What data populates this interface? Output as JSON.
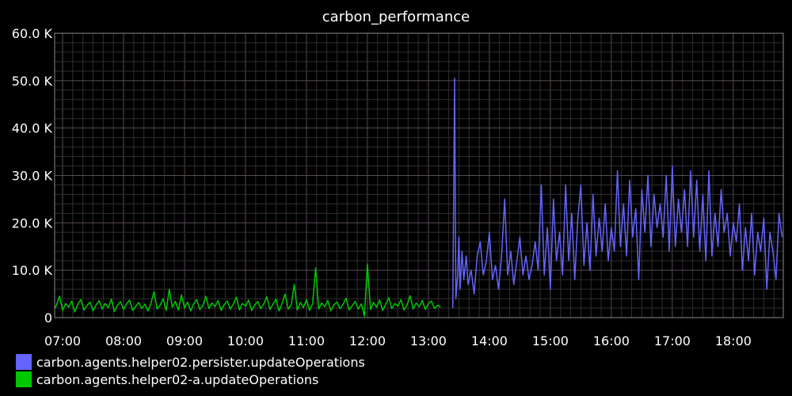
{
  "chart_data": {
    "type": "line",
    "title": "carbon_performance",
    "xlabel": "",
    "ylabel": "",
    "grid": true,
    "legend_placement": "bottom-left",
    "x_domain_hours": [
      6.87,
      18.82
    ],
    "ylim": [
      0,
      60000
    ],
    "y_ticks": [
      {
        "value": 0,
        "label": "0"
      },
      {
        "value": 10000,
        "label": "10.0 K"
      },
      {
        "value": 20000,
        "label": "20.0 K"
      },
      {
        "value": 30000,
        "label": "30.0 K"
      },
      {
        "value": 40000,
        "label": "40.0 K"
      },
      {
        "value": 50000,
        "label": "50.0 K"
      },
      {
        "value": 60000,
        "label": "60.0 K"
      }
    ],
    "x_ticks": [
      {
        "value": 7,
        "label": "07:00"
      },
      {
        "value": 8,
        "label": "08:00"
      },
      {
        "value": 9,
        "label": "09:00"
      },
      {
        "value": 10,
        "label": "10:00"
      },
      {
        "value": 11,
        "label": "11:00"
      },
      {
        "value": 12,
        "label": "12:00"
      },
      {
        "value": 13,
        "label": "13:00"
      },
      {
        "value": 14,
        "label": "14:00"
      },
      {
        "value": 15,
        "label": "15:00"
      },
      {
        "value": 16,
        "label": "16:00"
      },
      {
        "value": 17,
        "label": "17:00"
      },
      {
        "value": 18,
        "label": "18:00"
      }
    ],
    "series": [
      {
        "name": "carbon.agents.helper02.persister.updateOperations",
        "color": "#6464ff",
        "points": [
          [
            13.4,
            2000
          ],
          [
            13.43,
            50500
          ],
          [
            13.45,
            4000
          ],
          [
            13.48,
            9000
          ],
          [
            13.5,
            17000
          ],
          [
            13.52,
            6000
          ],
          [
            13.55,
            14000
          ],
          [
            13.58,
            8000
          ],
          [
            13.62,
            13000
          ],
          [
            13.65,
            7000
          ],
          [
            13.7,
            10000
          ],
          [
            13.75,
            5000
          ],
          [
            13.8,
            13000
          ],
          [
            13.85,
            16000
          ],
          [
            13.9,
            9000
          ],
          [
            13.95,
            12000
          ],
          [
            14.0,
            18000
          ],
          [
            14.05,
            8000
          ],
          [
            14.1,
            11000
          ],
          [
            14.15,
            6000
          ],
          [
            14.2,
            13000
          ],
          [
            14.25,
            25000
          ],
          [
            14.3,
            9000
          ],
          [
            14.35,
            14000
          ],
          [
            14.4,
            7000
          ],
          [
            14.45,
            12000
          ],
          [
            14.5,
            17000
          ],
          [
            14.55,
            9000
          ],
          [
            14.6,
            13000
          ],
          [
            14.65,
            8000
          ],
          [
            14.7,
            11000
          ],
          [
            14.75,
            16000
          ],
          [
            14.8,
            10000
          ],
          [
            14.85,
            28000
          ],
          [
            14.9,
            9000
          ],
          [
            14.95,
            19000
          ],
          [
            15.0,
            6000
          ],
          [
            15.05,
            25000
          ],
          [
            15.1,
            12000
          ],
          [
            15.15,
            18000
          ],
          [
            15.2,
            9000
          ],
          [
            15.25,
            28000
          ],
          [
            15.3,
            12000
          ],
          [
            15.35,
            22000
          ],
          [
            15.4,
            8000
          ],
          [
            15.45,
            21000
          ],
          [
            15.5,
            28000
          ],
          [
            15.55,
            11000
          ],
          [
            15.6,
            20000
          ],
          [
            15.65,
            10000
          ],
          [
            15.7,
            26000
          ],
          [
            15.75,
            13000
          ],
          [
            15.8,
            21000
          ],
          [
            15.85,
            14000
          ],
          [
            15.9,
            24000
          ],
          [
            15.95,
            12000
          ],
          [
            16.0,
            19000
          ],
          [
            16.05,
            14000
          ],
          [
            16.1,
            31000
          ],
          [
            16.15,
            15000
          ],
          [
            16.2,
            24000
          ],
          [
            16.25,
            13000
          ],
          [
            16.3,
            29000
          ],
          [
            16.35,
            17000
          ],
          [
            16.4,
            23000
          ],
          [
            16.45,
            8000
          ],
          [
            16.5,
            27000
          ],
          [
            16.55,
            18000
          ],
          [
            16.6,
            30000
          ],
          [
            16.65,
            15000
          ],
          [
            16.7,
            26000
          ],
          [
            16.75,
            19000
          ],
          [
            16.8,
            24000
          ],
          [
            16.85,
            17000
          ],
          [
            16.9,
            30000
          ],
          [
            16.95,
            14000
          ],
          [
            17.0,
            32000
          ],
          [
            17.05,
            15000
          ],
          [
            17.1,
            25000
          ],
          [
            17.15,
            18000
          ],
          [
            17.2,
            27000
          ],
          [
            17.25,
            15000
          ],
          [
            17.3,
            31000
          ],
          [
            17.35,
            17000
          ],
          [
            17.4,
            29000
          ],
          [
            17.45,
            14000
          ],
          [
            17.5,
            26000
          ],
          [
            17.55,
            12000
          ],
          [
            17.6,
            31000
          ],
          [
            17.65,
            13000
          ],
          [
            17.7,
            22000
          ],
          [
            17.75,
            15000
          ],
          [
            17.8,
            27000
          ],
          [
            17.85,
            18000
          ],
          [
            17.9,
            22000
          ],
          [
            17.95,
            13000
          ],
          [
            18.0,
            20000
          ],
          [
            18.05,
            16000
          ],
          [
            18.1,
            24000
          ],
          [
            18.15,
            10000
          ],
          [
            18.2,
            19000
          ],
          [
            18.25,
            12000
          ],
          [
            18.3,
            22000
          ],
          [
            18.35,
            9000
          ],
          [
            18.4,
            18000
          ],
          [
            18.45,
            14000
          ],
          [
            18.5,
            21000
          ],
          [
            18.55,
            6000
          ],
          [
            18.6,
            18000
          ],
          [
            18.65,
            14000
          ],
          [
            18.7,
            8000
          ],
          [
            18.75,
            22000
          ],
          [
            18.8,
            17000
          ]
        ]
      },
      {
        "name": "carbon.agents.helper02-a.updateOperations",
        "color": "#00c800",
        "points": [
          [
            6.88,
            2000
          ],
          [
            6.95,
            4500
          ],
          [
            7.0,
            1500
          ],
          [
            7.05,
            3000
          ],
          [
            7.1,
            2200
          ],
          [
            7.15,
            3500
          ],
          [
            7.2,
            1200
          ],
          [
            7.25,
            2800
          ],
          [
            7.3,
            3800
          ],
          [
            7.35,
            1600
          ],
          [
            7.4,
            2500
          ],
          [
            7.45,
            3300
          ],
          [
            7.5,
            1400
          ],
          [
            7.55,
            2700
          ],
          [
            7.6,
            3600
          ],
          [
            7.65,
            1800
          ],
          [
            7.7,
            3000
          ],
          [
            7.75,
            2100
          ],
          [
            7.8,
            3900
          ],
          [
            7.85,
            1300
          ],
          [
            7.9,
            2600
          ],
          [
            7.95,
            3400
          ],
          [
            8.0,
            1700
          ],
          [
            8.05,
            2900
          ],
          [
            8.1,
            3700
          ],
          [
            8.15,
            1500
          ],
          [
            8.2,
            2400
          ],
          [
            8.25,
            3200
          ],
          [
            8.3,
            1900
          ],
          [
            8.35,
            2800
          ],
          [
            8.4,
            1400
          ],
          [
            8.45,
            3000
          ],
          [
            8.5,
            5500
          ],
          [
            8.55,
            1800
          ],
          [
            8.6,
            2600
          ],
          [
            8.65,
            4000
          ],
          [
            8.7,
            1500
          ],
          [
            8.75,
            6000
          ],
          [
            8.8,
            2200
          ],
          [
            8.85,
            3400
          ],
          [
            8.9,
            1600
          ],
          [
            8.95,
            4800
          ],
          [
            9.0,
            2000
          ],
          [
            9.05,
            3300
          ],
          [
            9.1,
            1400
          ],
          [
            9.15,
            2900
          ],
          [
            9.2,
            3800
          ],
          [
            9.25,
            1700
          ],
          [
            9.3,
            2500
          ],
          [
            9.35,
            4500
          ],
          [
            9.4,
            1900
          ],
          [
            9.45,
            3100
          ],
          [
            9.5,
            2300
          ],
          [
            9.55,
            3600
          ],
          [
            9.6,
            1500
          ],
          [
            9.65,
            2700
          ],
          [
            9.7,
            3500
          ],
          [
            9.75,
            1800
          ],
          [
            9.8,
            2800
          ],
          [
            9.85,
            4300
          ],
          [
            9.9,
            1600
          ],
          [
            9.95,
            3000
          ],
          [
            10.0,
            2400
          ],
          [
            10.05,
            3700
          ],
          [
            10.1,
            1500
          ],
          [
            10.15,
            2600
          ],
          [
            10.2,
            3400
          ],
          [
            10.25,
            1900
          ],
          [
            10.3,
            2900
          ],
          [
            10.35,
            4400
          ],
          [
            10.4,
            1700
          ],
          [
            10.45,
            2800
          ],
          [
            10.5,
            3900
          ],
          [
            10.55,
            1400
          ],
          [
            10.6,
            3000
          ],
          [
            10.65,
            5000
          ],
          [
            10.7,
            1800
          ],
          [
            10.75,
            2700
          ],
          [
            10.8,
            7000
          ],
          [
            10.85,
            1600
          ],
          [
            10.9,
            3200
          ],
          [
            10.95,
            2100
          ],
          [
            11.0,
            3800
          ],
          [
            11.05,
            1500
          ],
          [
            11.1,
            2900
          ],
          [
            11.15,
            10500
          ],
          [
            11.2,
            1800
          ],
          [
            11.25,
            3100
          ],
          [
            11.3,
            2300
          ],
          [
            11.35,
            3600
          ],
          [
            11.4,
            1400
          ],
          [
            11.45,
            2700
          ],
          [
            11.5,
            3300
          ],
          [
            11.55,
            1900
          ],
          [
            11.6,
            2800
          ],
          [
            11.65,
            4100
          ],
          [
            11.7,
            1600
          ],
          [
            11.75,
            2500
          ],
          [
            11.8,
            3400
          ],
          [
            11.85,
            1800
          ],
          [
            11.9,
            2900
          ],
          [
            11.95,
            300
          ],
          [
            12.0,
            11300
          ],
          [
            12.05,
            1700
          ],
          [
            12.1,
            3200
          ],
          [
            12.15,
            2200
          ],
          [
            12.2,
            3700
          ],
          [
            12.25,
            1500
          ],
          [
            12.3,
            2800
          ],
          [
            12.35,
            4200
          ],
          [
            12.4,
            1900
          ],
          [
            12.45,
            3000
          ],
          [
            12.5,
            2400
          ],
          [
            12.55,
            3800
          ],
          [
            12.6,
            1600
          ],
          [
            12.65,
            2700
          ],
          [
            12.7,
            4600
          ],
          [
            12.75,
            1800
          ],
          [
            12.8,
            3100
          ],
          [
            12.85,
            2300
          ],
          [
            12.9,
            3600
          ],
          [
            12.95,
            1700
          ],
          [
            13.0,
            2900
          ],
          [
            13.05,
            3500
          ],
          [
            13.1,
            1900
          ],
          [
            13.15,
            2600
          ],
          [
            13.2,
            2200
          ]
        ]
      }
    ]
  }
}
